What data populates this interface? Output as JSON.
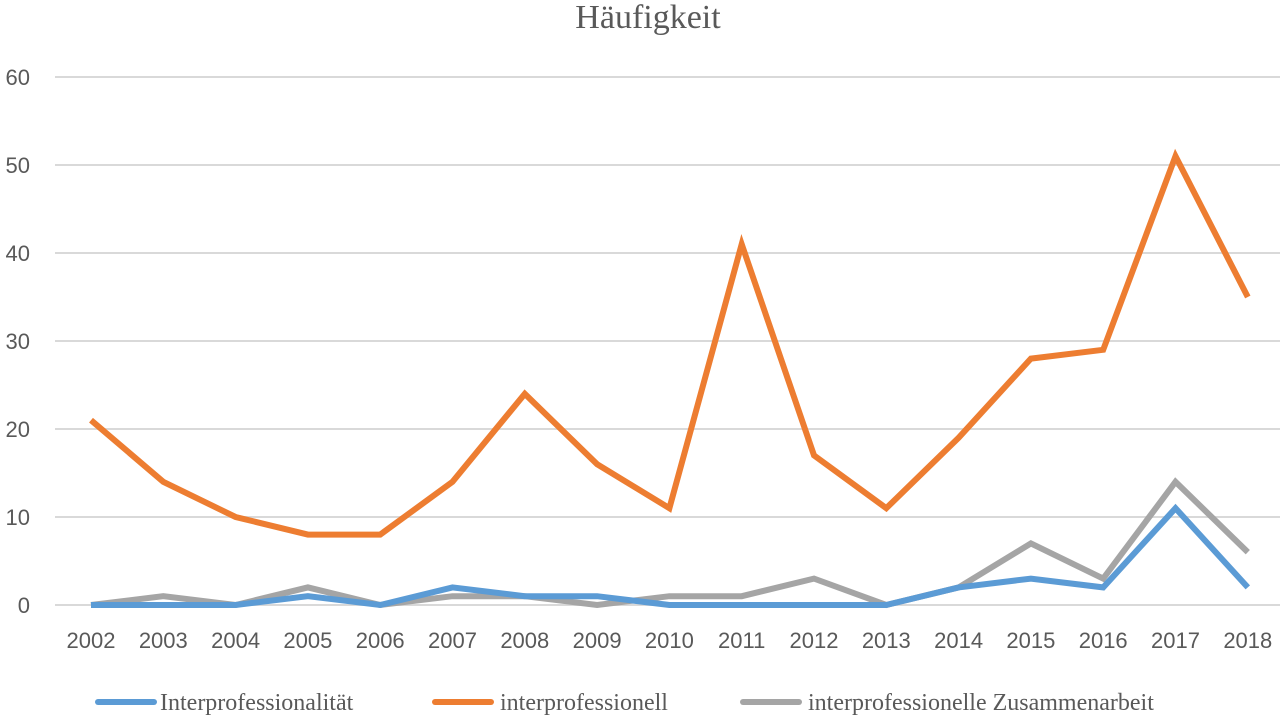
{
  "chart_data": {
    "type": "line",
    "title": "Häufigkeit",
    "xlabel": "",
    "ylabel": "",
    "ylim": [
      0,
      60
    ],
    "y_ticks": [
      0,
      10,
      20,
      30,
      40,
      50,
      60
    ],
    "categories": [
      "2002",
      "2003",
      "2004",
      "2005",
      "2006",
      "2007",
      "2008",
      "2009",
      "2010",
      "2011",
      "2012",
      "2013",
      "2014",
      "2015",
      "2016",
      "2017",
      "2018"
    ],
    "grid": true,
    "legend_position": "bottom",
    "series": [
      {
        "name": "Interprofessionalität",
        "color": "#5b9bd5",
        "values": [
          0,
          0,
          0,
          1,
          0,
          2,
          1,
          1,
          0,
          0,
          0,
          0,
          2,
          3,
          2,
          11,
          2
        ]
      },
      {
        "name": "interprofessionell",
        "color": "#ed7d31",
        "values": [
          21,
          14,
          10,
          8,
          8,
          14,
          24,
          16,
          11,
          41,
          17,
          11,
          19,
          28,
          29,
          51,
          35
        ]
      },
      {
        "name": "interprofessionelle Zusammenarbeit",
        "color": "#a5a5a5",
        "values": [
          0,
          1,
          0,
          2,
          0,
          1,
          1,
          0,
          1,
          1,
          3,
          0,
          2,
          7,
          3,
          14,
          6
        ]
      }
    ]
  }
}
